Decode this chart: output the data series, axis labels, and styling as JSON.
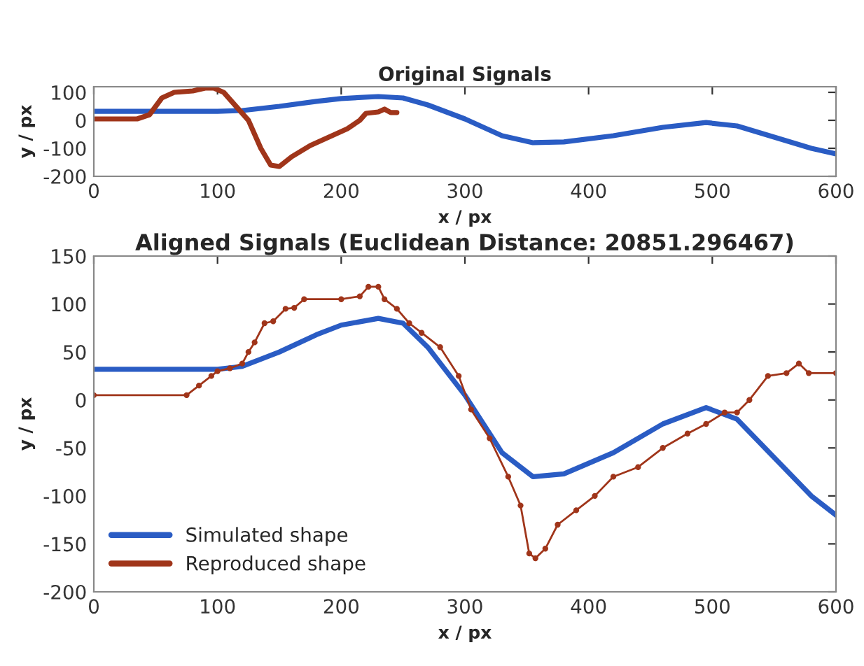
{
  "chart_data": [
    {
      "type": "line",
      "title": "Original Signals",
      "xlabel": "x / px",
      "ylabel": "y / px",
      "xlim": [
        0,
        600
      ],
      "ylim": [
        -200,
        120
      ],
      "xticks": [
        0,
        100,
        200,
        300,
        400,
        500,
        600
      ],
      "yticks": [
        -200,
        -100,
        0,
        100
      ],
      "grid": false,
      "legend": false,
      "line_style": "solid",
      "marker": "none",
      "series": [
        {
          "color": "#2a5cc4",
          "x": [
            0,
            50,
            100,
            120,
            150,
            180,
            200,
            230,
            250,
            270,
            300,
            330,
            355,
            380,
            420,
            460,
            495,
            520,
            550,
            580,
            600
          ],
          "values": [
            32,
            32,
            32,
            35,
            50,
            68,
            78,
            85,
            80,
            55,
            5,
            -55,
            -80,
            -77,
            -55,
            -25,
            -8,
            -20,
            -60,
            -100,
            -120
          ]
        },
        {
          "color": "#a0351a",
          "x": [
            0,
            35,
            45,
            55,
            65,
            80,
            90,
            97,
            105,
            115,
            125,
            135,
            143,
            150,
            160,
            175,
            190,
            205,
            215,
            220,
            230,
            235,
            240,
            245
          ],
          "values": [
            5,
            5,
            20,
            80,
            100,
            105,
            115,
            115,
            100,
            50,
            0,
            -100,
            -160,
            -165,
            -130,
            -90,
            -60,
            -30,
            0,
            25,
            30,
            40,
            28,
            28
          ]
        }
      ]
    },
    {
      "type": "line",
      "title": "Aligned Signals (Euclidean Distance: 20851.296467)",
      "xlabel": "x / px",
      "ylabel": "y / px",
      "xlim": [
        0,
        600
      ],
      "ylim": [
        -200,
        150
      ],
      "xticks": [
        0,
        100,
        200,
        300,
        400,
        500,
        600
      ],
      "yticks": [
        -200,
        -150,
        -100,
        -50,
        0,
        50,
        100,
        150
      ],
      "grid": false,
      "legend": "lower left",
      "line_style": "solid",
      "series": [
        {
          "name": "Simulated shape",
          "color": "#2a5cc4",
          "marker": "none",
          "x": [
            0,
            50,
            100,
            120,
            150,
            180,
            200,
            230,
            250,
            270,
            300,
            330,
            355,
            380,
            420,
            460,
            495,
            520,
            550,
            580,
            600
          ],
          "values": [
            32,
            32,
            32,
            35,
            50,
            68,
            78,
            85,
            80,
            55,
            5,
            -55,
            -80,
            -77,
            -55,
            -25,
            -8,
            -20,
            -60,
            -100,
            -120
          ]
        },
        {
          "name": "Reproduced shape",
          "color": "#a0351a",
          "marker": "circle",
          "x": [
            0,
            75,
            85,
            95,
            100,
            110,
            120,
            125,
            130,
            138,
            145,
            155,
            162,
            170,
            200,
            215,
            222,
            230,
            235,
            245,
            255,
            265,
            280,
            295,
            305,
            320,
            335,
            345,
            352,
            357,
            365,
            375,
            390,
            405,
            420,
            440,
            460,
            480,
            495,
            510,
            520,
            530,
            545,
            560,
            570,
            578,
            600
          ],
          "values": [
            5,
            5,
            15,
            25,
            30,
            33,
            38,
            50,
            60,
            80,
            82,
            95,
            96,
            105,
            105,
            108,
            118,
            118,
            105,
            95,
            80,
            70,
            55,
            25,
            -10,
            -40,
            -80,
            -110,
            -160,
            -165,
            -155,
            -130,
            -115,
            -100,
            -80,
            -70,
            -50,
            -35,
            -25,
            -13,
            -13,
            0,
            25,
            28,
            38,
            28,
            28
          ]
        }
      ]
    }
  ]
}
